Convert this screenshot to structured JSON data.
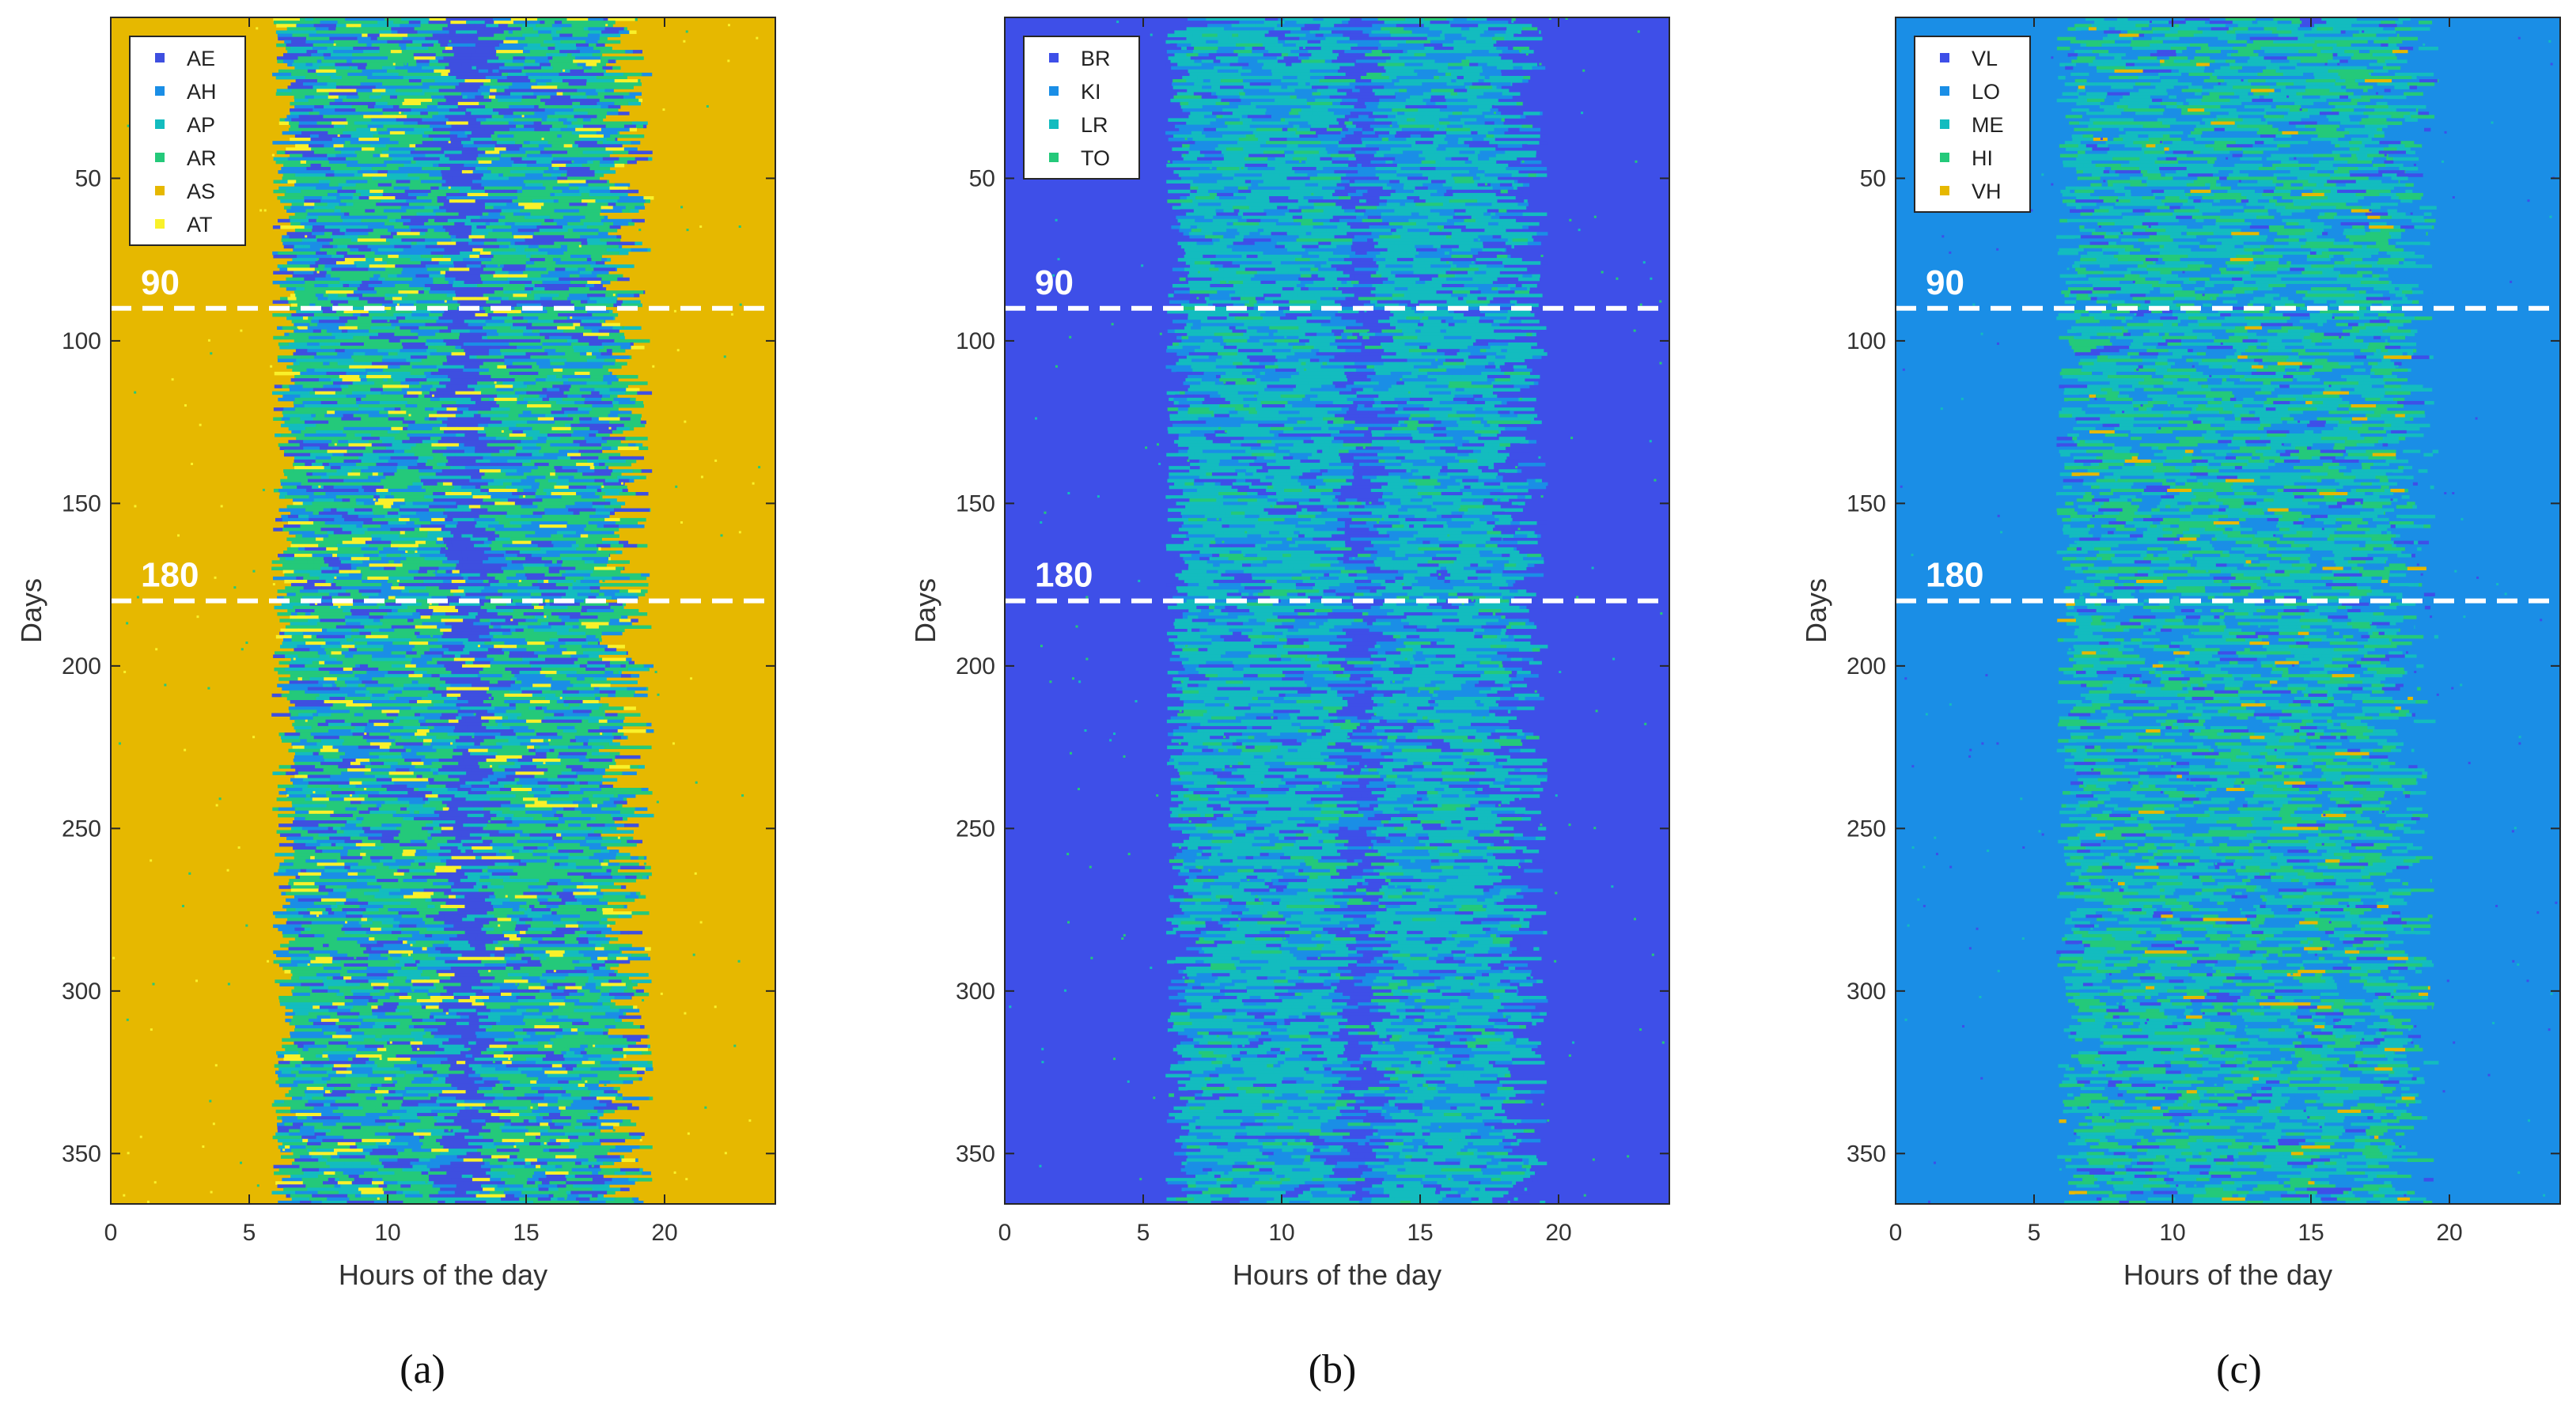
{
  "chart_data": [
    {
      "type": "heatmap",
      "caption": "(a)",
      "xlabel": "Hours of the day",
      "ylabel": "Days",
      "xlim": [
        0,
        24
      ],
      "ylim": [
        1,
        365
      ],
      "xticks": [
        0,
        5,
        10,
        15,
        20
      ],
      "yticks": [
        50,
        100,
        150,
        200,
        250,
        300,
        350
      ],
      "reference_lines": [
        90,
        180
      ],
      "legend_position": "top-left",
      "background_category": "AS",
      "legend": [
        {
          "name": "AE",
          "color": "#3e4fe0"
        },
        {
          "name": "AH",
          "color": "#1a8ee6"
        },
        {
          "name": "AP",
          "color": "#13bcbf"
        },
        {
          "name": "AR",
          "color": "#24c97a"
        },
        {
          "name": "AS",
          "color": "#e6b800"
        },
        {
          "name": "AT",
          "color": "#f9f12a"
        }
      ]
    },
    {
      "type": "heatmap",
      "caption": "(b)",
      "xlabel": "Hours of the day",
      "ylabel": "Days",
      "xlim": [
        0,
        24
      ],
      "ylim": [
        1,
        365
      ],
      "xticks": [
        0,
        5,
        10,
        15,
        20
      ],
      "yticks": [
        50,
        100,
        150,
        200,
        250,
        300,
        350
      ],
      "reference_lines": [
        90,
        180
      ],
      "legend_position": "top-left",
      "background_category": "BR",
      "legend": [
        {
          "name": "BR",
          "color": "#3e4fe8"
        },
        {
          "name": "KI",
          "color": "#1a8ee6"
        },
        {
          "name": "LR",
          "color": "#13bcbf"
        },
        {
          "name": "TO",
          "color": "#24c97a"
        }
      ]
    },
    {
      "type": "heatmap",
      "caption": "(c)",
      "xlabel": "Hours of the day",
      "ylabel": "Days",
      "xlim": [
        0,
        24
      ],
      "ylim": [
        1,
        365
      ],
      "xticks": [
        0,
        5,
        10,
        15,
        20
      ],
      "yticks": [
        50,
        100,
        150,
        200,
        250,
        300,
        350
      ],
      "reference_lines": [
        90,
        180
      ],
      "legend_position": "top-left",
      "background_category": "LO",
      "legend": [
        {
          "name": "VL",
          "color": "#3e4fe8"
        },
        {
          "name": "LO",
          "color": "#1a8ee6"
        },
        {
          "name": "ME",
          "color": "#13bcbf"
        },
        {
          "name": "HI",
          "color": "#24c97a"
        },
        {
          "name": "VH",
          "color": "#e6b800"
        }
      ]
    }
  ]
}
